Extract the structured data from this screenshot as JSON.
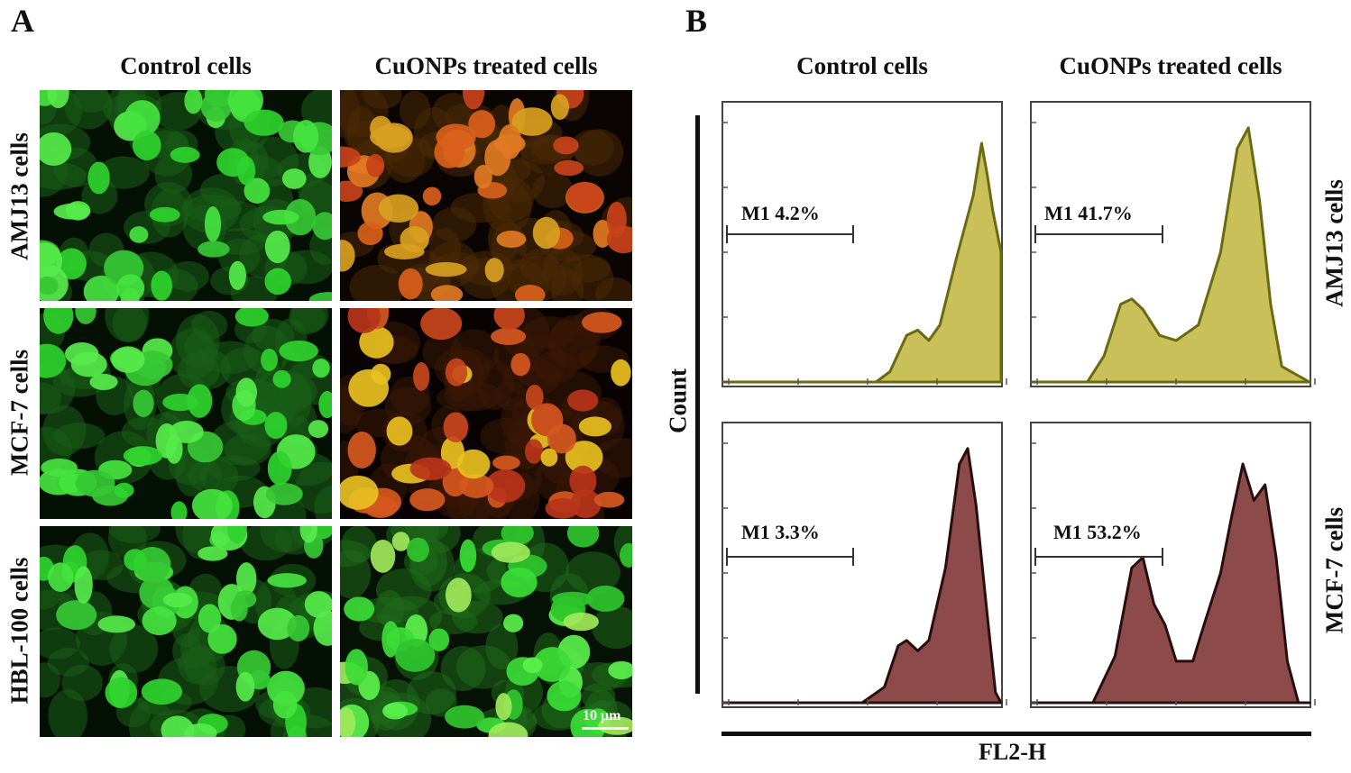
{
  "panel_a": {
    "letter": "A",
    "columns": [
      "Control cells",
      "CuONPs treated cells"
    ],
    "rows": [
      "AMJ13 cells",
      "MCF-7 cells",
      "HBL-100 cells"
    ],
    "scale_bar": "10 μm",
    "images": [
      {
        "row": "AMJ13 cells",
        "column": "Control cells",
        "stain": "green"
      },
      {
        "row": "AMJ13 cells",
        "column": "CuONPs treated cells",
        "stain": "orange-red"
      },
      {
        "row": "MCF-7 cells",
        "column": "Control cells",
        "stain": "green"
      },
      {
        "row": "MCF-7 cells",
        "column": "CuONPs treated cells",
        "stain": "orange-red"
      },
      {
        "row": "HBL-100 cells",
        "column": "Control cells",
        "stain": "green"
      },
      {
        "row": "HBL-100 cells",
        "column": "CuONPs treated cells",
        "stain": "green"
      }
    ],
    "colors": {
      "green": "#3be03a",
      "orange": "#e0761c",
      "red": "#c8331a",
      "yellow": "#e8d020",
      "background": "#050805"
    }
  },
  "panel_b": {
    "letter": "B",
    "columns": [
      "Control cells",
      "CuONPs treated cells"
    ],
    "rows": [
      "AMJ13 cells",
      "MCF-7 cells"
    ],
    "y_axis_title": "Count",
    "x_axis_title": "FL2-H",
    "colors": {
      "AMJ13 cells": "#c9c05a",
      "AMJ13 cells_outline": "#6a6a10",
      "MCF-7 cells": "#8c4a4a",
      "MCF-7 cells_outline": "#2a0e0e"
    },
    "gates": [
      {
        "row": "AMJ13 cells",
        "column": "Control cells",
        "label": "M1 4.2%"
      },
      {
        "row": "AMJ13 cells",
        "column": "CuONPs treated cells",
        "label": "M1 41.7%"
      },
      {
        "row": "MCF-7 cells",
        "column": "Control cells",
        "label": "M1 3.3%"
      },
      {
        "row": "MCF-7 cells",
        "column": "CuONPs treated cells",
        "label": "M1 53.2%"
      }
    ]
  }
}
